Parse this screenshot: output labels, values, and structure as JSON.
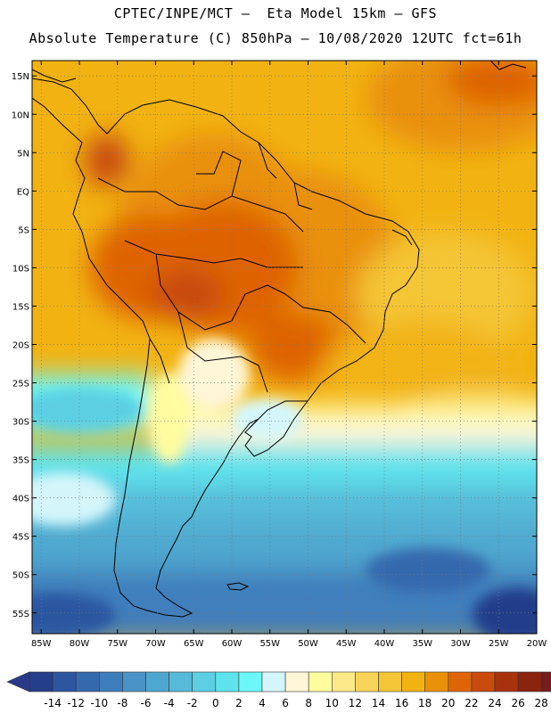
{
  "title_line1": "CPTEC/INPE/MCT –  Eta Model 15km – GFS",
  "title_line2": "Absolute Temperature (C) 850hPa – 10/08/2020 12UTC fct=61h",
  "lat_labels": [
    "15N",
    "10N",
    "5N",
    "EQ",
    "5S",
    "10S",
    "15S",
    "20S",
    "25S",
    "30S",
    "35S",
    "40S",
    "45S",
    "50S",
    "55S"
  ],
  "lat_values": [
    15,
    10,
    5,
    0,
    -5,
    -10,
    -15,
    -20,
    -25,
    -30,
    -35,
    -40,
    -45,
    -50,
    -55
  ],
  "lon_labels": [
    "85W",
    "80W",
    "75W",
    "70W",
    "65W",
    "60W",
    "55W",
    "50W",
    "45W",
    "40W",
    "35W",
    "30W",
    "25W",
    "20W"
  ],
  "lon_values": [
    -85,
    -80,
    -75,
    -70,
    -65,
    -60,
    -55,
    -50,
    -45,
    -40,
    -35,
    -30,
    -25,
    -20
  ],
  "extent": {
    "lon_min": -86.2,
    "lon_max": -20,
    "lat_min": -57.7,
    "lat_max": 17
  },
  "colorbar": {
    "labels": [
      "-14",
      "-12",
      "-10",
      "-8",
      "-6",
      "-4",
      "-2",
      "0",
      "2",
      "4",
      "6",
      "8",
      "10",
      "12",
      "14",
      "16",
      "18",
      "20",
      "22",
      "24",
      "26",
      "28"
    ],
    "colors": [
      "#243e8a",
      "#2c56a0",
      "#3569ad",
      "#3f7ebc",
      "#4a93c6",
      "#4fa7cf",
      "#57bad8",
      "#5ccfe3",
      "#5ee3ec",
      "#6cf8f8",
      "#d4f6fb",
      "#fff6d8",
      "#fffca0",
      "#fbe98a",
      "#f8d55a",
      "#f4c536",
      "#f2b312",
      "#e99009",
      "#de6406",
      "#c84a0c",
      "#a8320e",
      "#8a240f",
      "#741c1e",
      "#7e0a2c"
    ],
    "under_color": "#2a3a8a",
    "over_color": "#7e0a2c"
  }
}
